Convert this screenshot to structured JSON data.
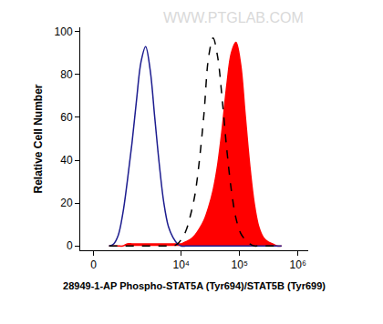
{
  "chart_data": {
    "type": "line",
    "x_label": "28949-1-AP Phospho-STAT5A (Tyr694)/STAT5B (Tyr699)",
    "y_label": "Relative Cell Number",
    "annotations": [
      {
        "text": "WWW.PTGLAB.COM"
      }
    ],
    "x": [
      411,
      554,
      714,
      897,
      1106,
      1365,
      1656,
      2003,
      2414,
      2907,
      3489,
      4190,
      5024,
      6023,
      7205,
      8658,
      10000,
      12000,
      14300,
      17200,
      20500,
      24600,
      29400,
      35200,
      42200,
      50500,
      60400,
      72300,
      86600,
      104000,
      124000,
      149000,
      178000,
      213000,
      255000,
      306000,
      365000,
      438000,
      524000
    ],
    "series": [
      {
        "type": "line",
        "color": "#1c1c8f",
        "line_style": "solid",
        "values": [
          0,
          1,
          5,
          15,
          30,
          48,
          68,
          86,
          93,
          82,
          60,
          38,
          20,
          9,
          4,
          1,
          0,
          0,
          0,
          0,
          0,
          0,
          0,
          0,
          0,
          0,
          0,
          0,
          0,
          0,
          0,
          0,
          0,
          0,
          0,
          0,
          0,
          0,
          0
        ]
      },
      {
        "type": "line",
        "color": "#000000",
        "line_style": "dashed",
        "values": [
          0,
          0,
          0,
          0,
          0,
          0,
          0,
          0,
          0,
          0,
          0,
          0,
          0,
          0,
          0,
          1,
          3,
          7,
          14,
          24,
          40,
          62,
          88,
          97,
          88,
          68,
          45,
          26,
          13,
          6,
          3,
          1,
          0,
          0,
          0,
          0,
          0,
          0,
          0
        ]
      },
      {
        "type": "area",
        "color": "#ff0000",
        "line_style": "solid",
        "values": [
          0,
          0,
          0,
          0,
          1,
          1,
          1,
          1,
          1,
          1,
          1,
          1,
          1,
          1,
          1,
          1,
          1,
          2,
          3,
          5,
          8,
          12,
          18,
          26,
          38,
          55,
          75,
          90,
          95,
          85,
          62,
          38,
          20,
          9,
          4,
          2,
          1,
          0,
          0
        ]
      }
    ],
    "xlim": [
      -350,
      1500000
    ],
    "xticks": [
      0,
      {
        "value": 10000,
        "label": "10⁴"
      },
      {
        "value": 100000,
        "label": "10⁵"
      },
      {
        "value": 1000000,
        "label": "10⁶"
      }
    ],
    "ylim": [
      -2,
      102
    ],
    "yticks": [
      0,
      20,
      40,
      60,
      80,
      100
    ],
    "grid": false
  }
}
